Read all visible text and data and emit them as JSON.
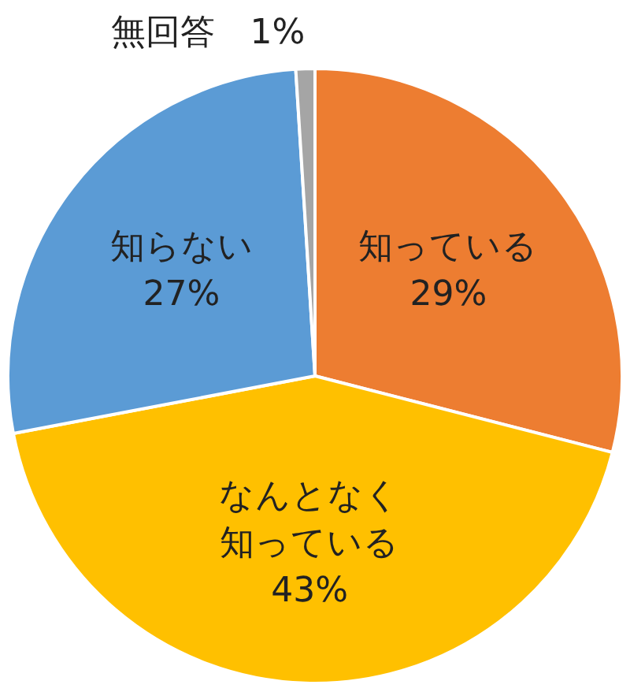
{
  "chart_data": {
    "type": "pie",
    "categories": [
      "知っている",
      "なんとなく知っている",
      "知らない",
      "無回答"
    ],
    "values": [
      29,
      43,
      27,
      1
    ],
    "value_labels": [
      "29%",
      "43%",
      "27%",
      "1%"
    ],
    "colors": [
      "#ed7d31",
      "#ffc000",
      "#5b9bd5",
      "#a5a5a5"
    ],
    "legend": false
  }
}
